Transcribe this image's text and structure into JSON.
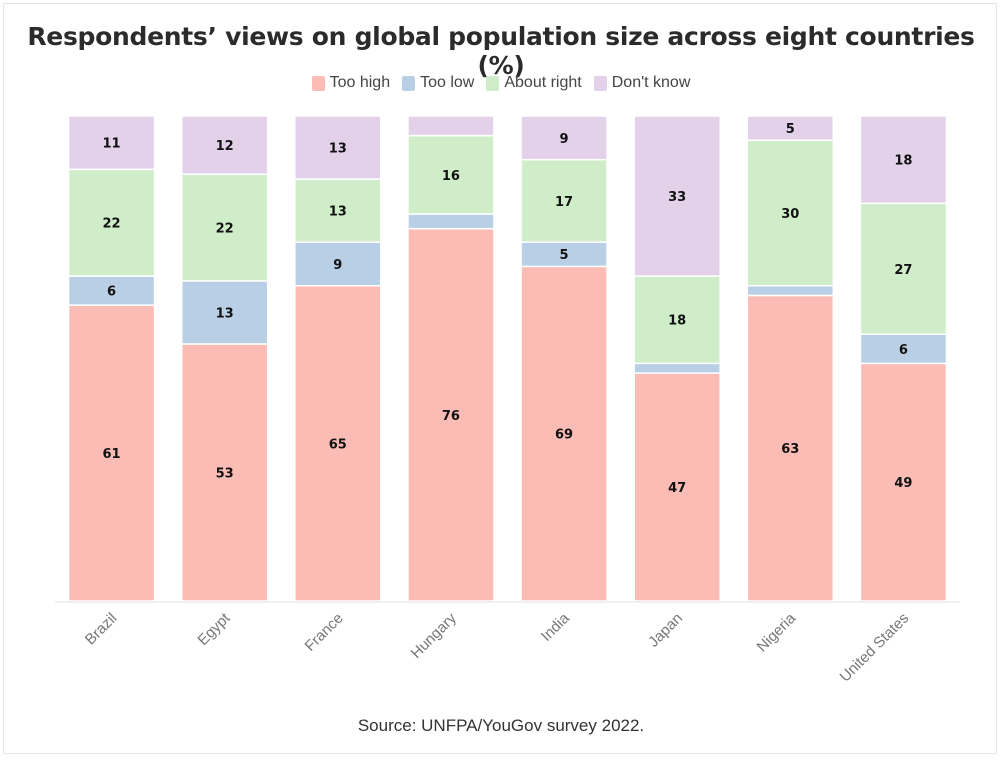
{
  "chart_data": {
    "type": "bar",
    "stacked": true,
    "title": "Respondents’ views on global population size across eight countries (%)",
    "categories": [
      "Brazil",
      "Egypt",
      "France",
      "Hungary",
      "India",
      "Japan",
      "Nigeria",
      "United States"
    ],
    "series": [
      {
        "name": "Too high",
        "color": "#fbbcb5",
        "values": [
          61,
          53,
          65,
          76,
          69,
          47,
          63,
          49
        ],
        "labels": [
          "61",
          "53",
          "65",
          "76",
          "69",
          "47",
          "63",
          "49"
        ]
      },
      {
        "name": "Too low",
        "color": "#b9cfe6",
        "values": [
          6,
          13,
          9,
          3,
          5,
          2,
          2,
          6
        ],
        "labels": [
          "6",
          "13",
          "9",
          "",
          "5",
          "",
          "",
          "6"
        ]
      },
      {
        "name": "About right",
        "color": "#cfedc9",
        "values": [
          22,
          22,
          13,
          16,
          17,
          18,
          30,
          27
        ],
        "labels": [
          "22",
          "22",
          "13",
          "16",
          "17",
          "18",
          "30",
          "27"
        ]
      },
      {
        "name": "Don't know",
        "color": "#e3d1ea",
        "values": [
          11,
          12,
          13,
          4,
          9,
          33,
          5,
          18
        ],
        "labels": [
          "11",
          "12",
          "13",
          "",
          "9",
          "33",
          "5",
          "18"
        ]
      }
    ],
    "ylim": [
      0,
      100
    ],
    "grid": false,
    "legend_position": "top-center",
    "source": "Source: UNFPA/YouGov survey 2022."
  }
}
